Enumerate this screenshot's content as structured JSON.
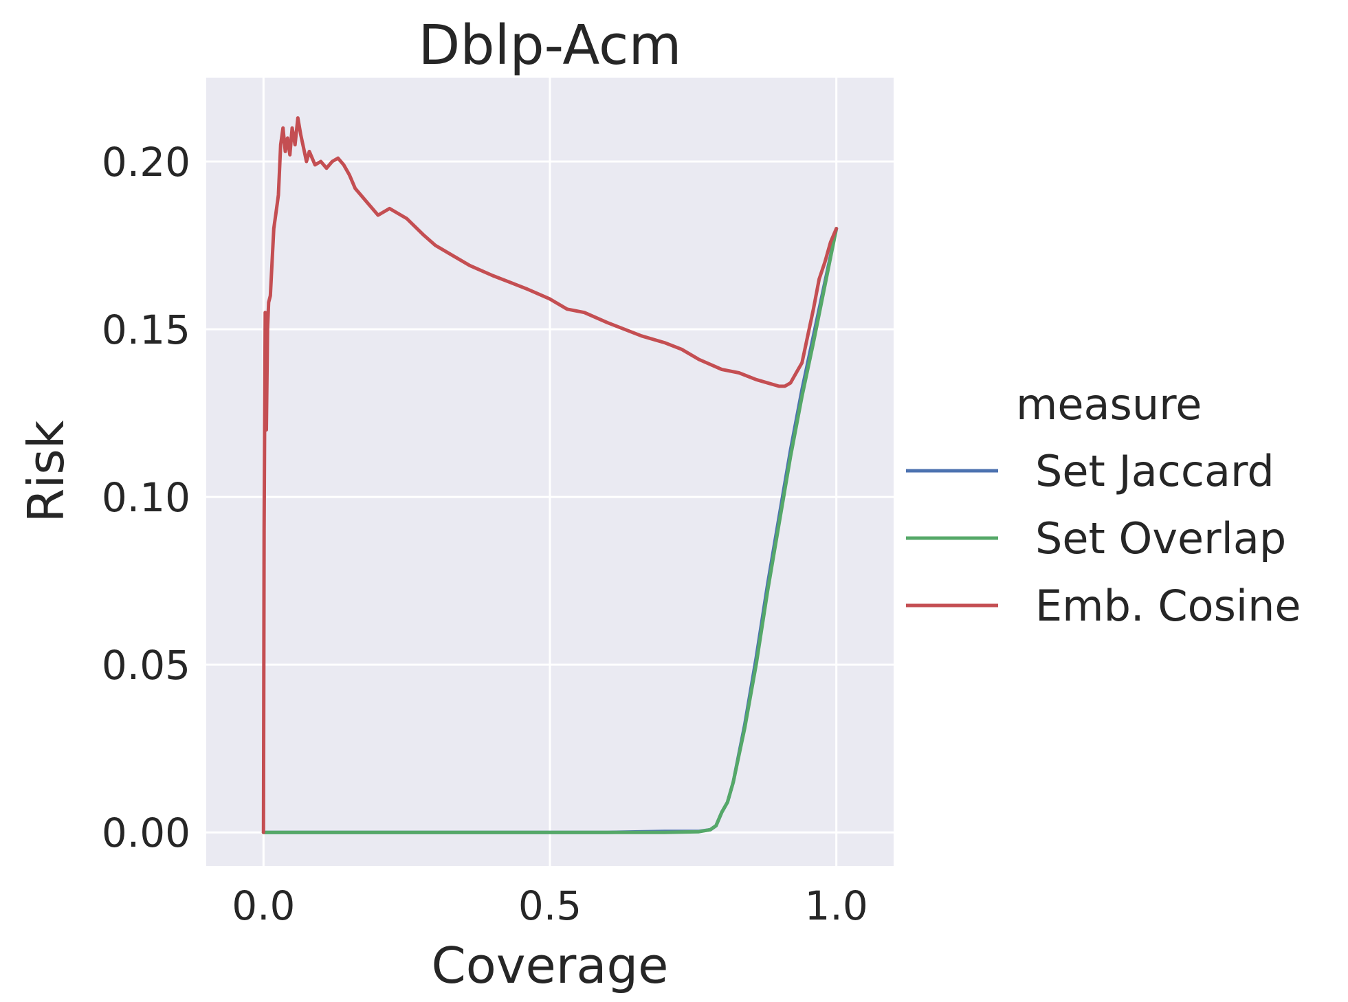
{
  "chart_data": {
    "type": "line",
    "title": "Dblp-Acm",
    "xlabel": "Coverage",
    "ylabel": "Risk",
    "xlim": [
      -0.1,
      1.1
    ],
    "ylim": [
      -0.01,
      0.225
    ],
    "xticks": [
      0.0,
      0.5,
      1.0
    ],
    "xtick_labels": [
      "0.0",
      "0.5",
      "1.0"
    ],
    "yticks": [
      0.0,
      0.05,
      0.1,
      0.15,
      0.2
    ],
    "ytick_labels": [
      "0.00",
      "0.05",
      "0.10",
      "0.15",
      "0.20"
    ],
    "grid": true,
    "background": "#eaeaf2",
    "legend": {
      "title": "measure",
      "placement": "right"
    },
    "series": [
      {
        "name": "Set Jaccard",
        "color": "#4c72b0",
        "x": [
          0.0,
          0.1,
          0.3,
          0.5,
          0.6,
          0.7,
          0.76,
          0.78,
          0.79,
          0.8,
          0.81,
          0.82,
          0.84,
          0.86,
          0.88,
          0.9,
          0.92,
          0.94,
          0.96,
          0.98,
          1.0
        ],
        "y": [
          0.0,
          0.0,
          0.0,
          0.0,
          0.0,
          0.0003,
          0.0003,
          0.0008,
          0.002,
          0.006,
          0.009,
          0.015,
          0.032,
          0.052,
          0.074,
          0.094,
          0.114,
          0.132,
          0.148,
          0.164,
          0.18
        ]
      },
      {
        "name": "Set Overlap",
        "color": "#55a868",
        "x": [
          0.0,
          0.1,
          0.3,
          0.5,
          0.6,
          0.7,
          0.76,
          0.78,
          0.79,
          0.8,
          0.81,
          0.82,
          0.84,
          0.86,
          0.88,
          0.9,
          0.92,
          0.94,
          0.96,
          0.98,
          1.0
        ],
        "y": [
          0.0,
          0.0,
          0.0,
          0.0,
          0.0,
          0.0,
          0.0002,
          0.0008,
          0.002,
          0.006,
          0.009,
          0.015,
          0.031,
          0.05,
          0.072,
          0.092,
          0.112,
          0.13,
          0.146,
          0.163,
          0.18
        ]
      },
      {
        "name": "Emb. Cosine",
        "color": "#c44e52",
        "x": [
          0.0,
          0.001,
          0.003,
          0.005,
          0.007,
          0.009,
          0.012,
          0.015,
          0.018,
          0.022,
          0.026,
          0.03,
          0.034,
          0.038,
          0.042,
          0.046,
          0.05,
          0.055,
          0.06,
          0.065,
          0.07,
          0.075,
          0.08,
          0.09,
          0.1,
          0.11,
          0.12,
          0.13,
          0.14,
          0.15,
          0.16,
          0.18,
          0.2,
          0.22,
          0.25,
          0.28,
          0.3,
          0.33,
          0.36,
          0.4,
          0.43,
          0.46,
          0.5,
          0.53,
          0.56,
          0.6,
          0.63,
          0.66,
          0.7,
          0.73,
          0.76,
          0.8,
          0.83,
          0.86,
          0.88,
          0.9,
          0.91,
          0.92,
          0.93,
          0.94,
          0.95,
          0.96,
          0.97,
          0.98,
          0.99,
          1.0
        ],
        "y": [
          0.0,
          0.09,
          0.155,
          0.12,
          0.15,
          0.158,
          0.16,
          0.17,
          0.18,
          0.185,
          0.19,
          0.205,
          0.21,
          0.203,
          0.207,
          0.202,
          0.21,
          0.205,
          0.213,
          0.208,
          0.204,
          0.2,
          0.203,
          0.199,
          0.2,
          0.198,
          0.2,
          0.201,
          0.199,
          0.196,
          0.192,
          0.188,
          0.184,
          0.186,
          0.183,
          0.178,
          0.175,
          0.172,
          0.169,
          0.166,
          0.164,
          0.162,
          0.159,
          0.156,
          0.155,
          0.152,
          0.15,
          0.148,
          0.146,
          0.144,
          0.141,
          0.138,
          0.137,
          0.135,
          0.134,
          0.133,
          0.133,
          0.134,
          0.137,
          0.14,
          0.148,
          0.156,
          0.165,
          0.17,
          0.176,
          0.18
        ]
      }
    ]
  }
}
